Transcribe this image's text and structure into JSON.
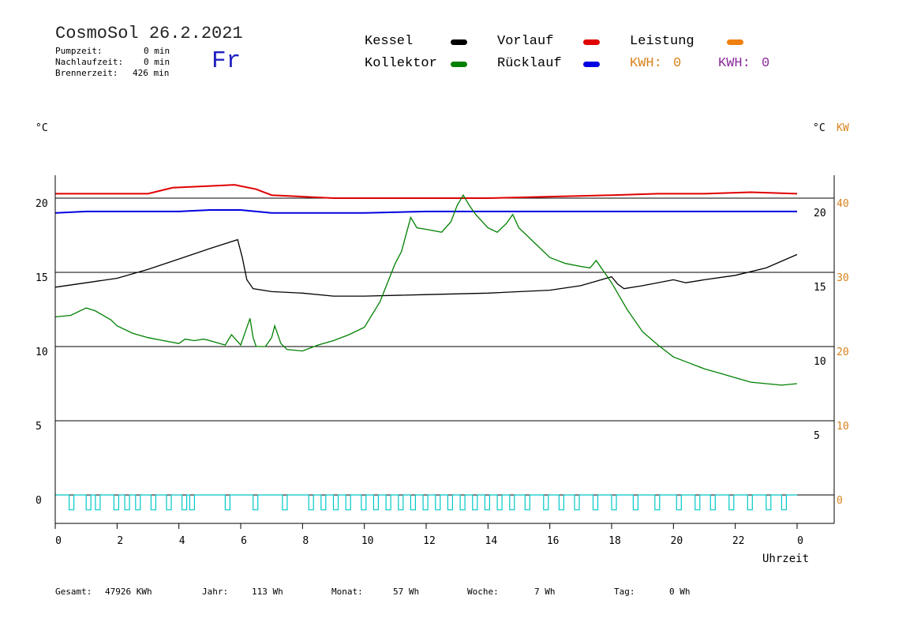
{
  "header": {
    "title": "CosmoSol 26.2.2021",
    "weekday": "Fr",
    "stats": [
      {
        "label": "Pumpzeit:",
        "value": "0 min"
      },
      {
        "label": "Nachlaufzeit:",
        "value": "0 min"
      },
      {
        "label": "Brennerzeit:",
        "value": "426 min"
      }
    ]
  },
  "legend": {
    "kessel": {
      "label": "Kessel",
      "color": "#000000"
    },
    "kollektor": {
      "label": "Kollektor",
      "color": "#008000"
    },
    "vorlauf": {
      "label": "Vorlauf",
      "color": "#e00000"
    },
    "ruecklauf": {
      "label": "Rücklauf",
      "color": "#0000e0"
    },
    "leistung": {
      "label": "Leistung",
      "color": "#f08010"
    },
    "kwh_orange": {
      "label": "KWH:",
      "value": "0",
      "color": "#d8821a"
    },
    "kwh_purple": {
      "label": "KWH:",
      "value": "0",
      "color": "#8a2a9a"
    }
  },
  "footer": {
    "gesamt": {
      "label": "Gesamt:",
      "value": "47926 KWh"
    },
    "jahr": {
      "label": "Jahr:",
      "value": "113 Wh"
    },
    "monat": {
      "label": "Monat:",
      "value": "57 Wh"
    },
    "woche": {
      "label": "Woche:",
      "value": "7 Wh"
    },
    "tag": {
      "label": "Tag:",
      "value": "0 Wh"
    }
  },
  "chart_data": {
    "type": "line",
    "xlabel": "Uhrzeit",
    "x_ticks": [
      "0",
      "2",
      "4",
      "6",
      "8",
      "10",
      "12",
      "14",
      "16",
      "18",
      "20",
      "22",
      "0"
    ],
    "xlim": [
      0,
      24
    ],
    "left_axis": {
      "unit": "°C",
      "ticks": [
        "0",
        "5",
        "10",
        "15",
        "20"
      ],
      "ylim": [
        -1.5,
        22
      ]
    },
    "right_axis_temp": {
      "unit": "°C",
      "ticks": [
        "5",
        "10",
        "15",
        "20"
      ]
    },
    "right_axis_kw": {
      "unit": "KW",
      "ticks": [
        "0",
        "10",
        "20",
        "30",
        "40"
      ]
    },
    "grid": true,
    "series": [
      {
        "name": "Vorlauf",
        "color": "#e00000",
        "x": [
          0,
          1,
          2,
          3,
          3.8,
          4.8,
          5.8,
          6.5,
          7,
          8,
          9,
          10,
          12,
          14,
          16,
          18,
          19.5,
          21,
          22.5,
          24
        ],
        "y": [
          20.3,
          20.3,
          20.3,
          20.3,
          20.7,
          20.8,
          20.9,
          20.6,
          20.2,
          20.1,
          20.0,
          20.0,
          20.0,
          20.0,
          20.1,
          20.2,
          20.3,
          20.3,
          20.4,
          20.3
        ]
      },
      {
        "name": "Rücklauf",
        "color": "#0000e0",
        "x": [
          0,
          1,
          2,
          3,
          4,
          5,
          6,
          7,
          8,
          10,
          12,
          14,
          16,
          18,
          20,
          22,
          24
        ],
        "y": [
          19.0,
          19.1,
          19.1,
          19.1,
          19.1,
          19.2,
          19.2,
          19.0,
          19.0,
          19.0,
          19.1,
          19.1,
          19.1,
          19.1,
          19.1,
          19.1,
          19.1
        ]
      },
      {
        "name": "Kessel",
        "color": "#000000",
        "x": [
          0,
          1,
          2,
          3,
          4,
          5,
          5.9,
          6.05,
          6.2,
          6.4,
          7,
          8,
          9,
          10,
          12,
          14,
          16,
          17,
          18,
          18.2,
          18.4,
          19,
          20,
          20.4,
          21,
          22,
          23,
          24
        ],
        "y": [
          14.0,
          14.3,
          14.6,
          15.2,
          15.9,
          16.6,
          17.2,
          16.0,
          14.5,
          13.9,
          13.7,
          13.6,
          13.4,
          13.4,
          13.5,
          13.6,
          13.8,
          14.1,
          14.7,
          14.2,
          13.9,
          14.1,
          14.5,
          14.3,
          14.5,
          14.8,
          15.3,
          16.2
        ]
      },
      {
        "name": "Kollektor",
        "color": "#008000",
        "x": [
          0,
          0.5,
          1,
          1.3,
          1.8,
          2,
          2.5,
          3,
          3.5,
          4,
          4.2,
          4.5,
          4.8,
          5,
          5.5,
          5.7,
          6,
          6.3,
          6.4,
          6.5,
          6.8,
          7,
          7.1,
          7.3,
          7.5,
          8,
          8.5,
          9,
          9.5,
          10,
          10.5,
          11,
          11.2,
          11.5,
          11.7,
          12,
          12.5,
          12.8,
          13,
          13.2,
          13.4,
          13.6,
          14,
          14.3,
          14.6,
          14.8,
          15,
          15.5,
          16,
          16.5,
          17,
          17.3,
          17.5,
          18,
          18.5,
          19,
          19.5,
          20,
          20.5,
          21,
          21.5,
          22,
          22.5,
          23,
          23.5,
          24
        ],
        "y": [
          12.0,
          12.1,
          12.6,
          12.4,
          11.8,
          11.4,
          10.9,
          10.6,
          10.4,
          10.2,
          10.5,
          10.4,
          10.5,
          10.4,
          10.1,
          10.8,
          10.1,
          11.9,
          10.6,
          10.0,
          10.0,
          10.6,
          11.4,
          10.2,
          9.8,
          9.7,
          10.1,
          10.4,
          10.8,
          11.3,
          13.0,
          15.6,
          16.4,
          18.7,
          18.0,
          17.9,
          17.7,
          18.4,
          19.5,
          20.2,
          19.5,
          18.9,
          18.0,
          17.7,
          18.3,
          18.9,
          18.0,
          17.0,
          16.0,
          15.6,
          15.4,
          15.3,
          15.8,
          14.3,
          12.5,
          11.0,
          10.1,
          9.3,
          8.9,
          8.5,
          8.2,
          7.9,
          7.6,
          7.5,
          7.4,
          7.5
        ]
      },
      {
        "name": "Pumpe",
        "color": "#00c8c8",
        "pulses_x": [
          0.45,
          1.0,
          1.3,
          1.9,
          2.25,
          2.6,
          3.1,
          3.6,
          4.1,
          4.35,
          5.5,
          6.4,
          7.35,
          8.2,
          8.6,
          9.0,
          9.4,
          9.9,
          10.3,
          10.7,
          11.1,
          11.5,
          11.9,
          12.3,
          12.7,
          13.1,
          13.5,
          13.9,
          14.3,
          14.7,
          15.2,
          15.8,
          16.3,
          16.8,
          17.4,
          18.0,
          18.7,
          19.4,
          20.1,
          20.7,
          21.2,
          21.8,
          22.4,
          23.0,
          23.5
        ],
        "y_on": 0,
        "y_off": -1.0
      }
    ]
  }
}
